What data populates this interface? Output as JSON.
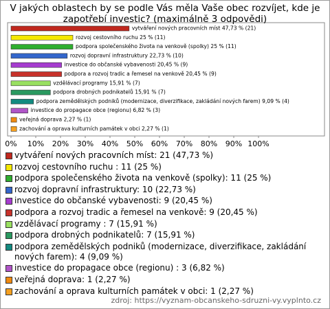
{
  "chart_data": {
    "type": "hbar",
    "title": "V jakých oblastech by se podle Vás měla Vaše obec rozvíjet, kde je zapotřebí investic? (maximálně 3 odpovědi)",
    "categories": [
      "vytváření nových pracovních míst: 21 (47,73 %)",
      "rozvoj cestovního ruchu : 11 (25 %)",
      "podpora společenského života na venkově (spolky): 11 (25 %)",
      "rozvoj dopravní infrastruktury: 10 (22,73 %)",
      "investice do občanské vybavenosti: 9 (20,45 %)",
      "podpora a rozvoj tradic a řemesel na venkově: 9 (20,45 %)",
      "vzdělávací programy : 7 (15,91 %)",
      "podpora drobných podnikatelů: 7 (15,91 %)",
      "podpora zemědělských podniků (modernizace, diverzifikace, zakládání nových farem): 4 (9,09 %)",
      "investice do propagace obce (regionu) : 3 (6,82 %)",
      "veřejná doprava: 1 (2,27 %)",
      "zachování a oprava kulturních památek v obci: 1 (2,27 %)"
    ],
    "values": [
      47.73,
      25,
      25,
      22.73,
      20.45,
      20.45,
      15.91,
      15.91,
      9.09,
      6.82,
      2.27,
      2.27
    ],
    "value_labels": [
      "vytváření nových pracovních míst 47,73 % (21)",
      "rozvoj cestovního ruchu  25 % (11)",
      "podpora společenského života na venkově (spolky) 25 % (11)",
      "rozvoj dopravní infrastruktury 22,73 % (10)",
      "investice do občanské vybavenosti 20,45 % (9)",
      "podpora a rozvoj tradic a řemesel na venkově 20,45 % (9)",
      "vzdělávací programy  15,91 % (7)",
      "podpora drobných podnikatelů 15,91 % (7)",
      "podpora zemědělských podniků (modernizace, diverzifikace, zakládání nových farem) 9,09 % (4)",
      "investice do propagace obce (regionu)  6,82 % (3)",
      "veřejná doprava 2,27 % (1)",
      "zachování a oprava kulturních památek v obci 2,27 % (1)"
    ],
    "colors": [
      "#c0281e",
      "#f5e800",
      "#2fae2f",
      "#3366cc",
      "#a63ccf",
      "#c8322a",
      "#99e060",
      "#2a9960",
      "#138a80",
      "#b055c8",
      "#f08a10",
      "#f5a020"
    ],
    "xlim": [
      0,
      100
    ],
    "xticks": [
      {
        "value": 0,
        "label": "0%"
      },
      {
        "value": 10,
        "label": "10%"
      },
      {
        "value": 20,
        "label": "20%"
      },
      {
        "value": 30,
        "label": "30%"
      },
      {
        "value": 40,
        "label": "40%"
      },
      {
        "value": 50,
        "label": "50%"
      },
      {
        "value": 60,
        "label": "60%"
      },
      {
        "value": 70,
        "label": "70%"
      },
      {
        "value": 80,
        "label": "80%"
      },
      {
        "value": 90,
        "label": "90%"
      },
      {
        "value": 100,
        "label": "100%"
      }
    ],
    "source": "zdroj: https://vyznam-obcanskeho-sdruzni-vy.vyplnto.cz"
  }
}
